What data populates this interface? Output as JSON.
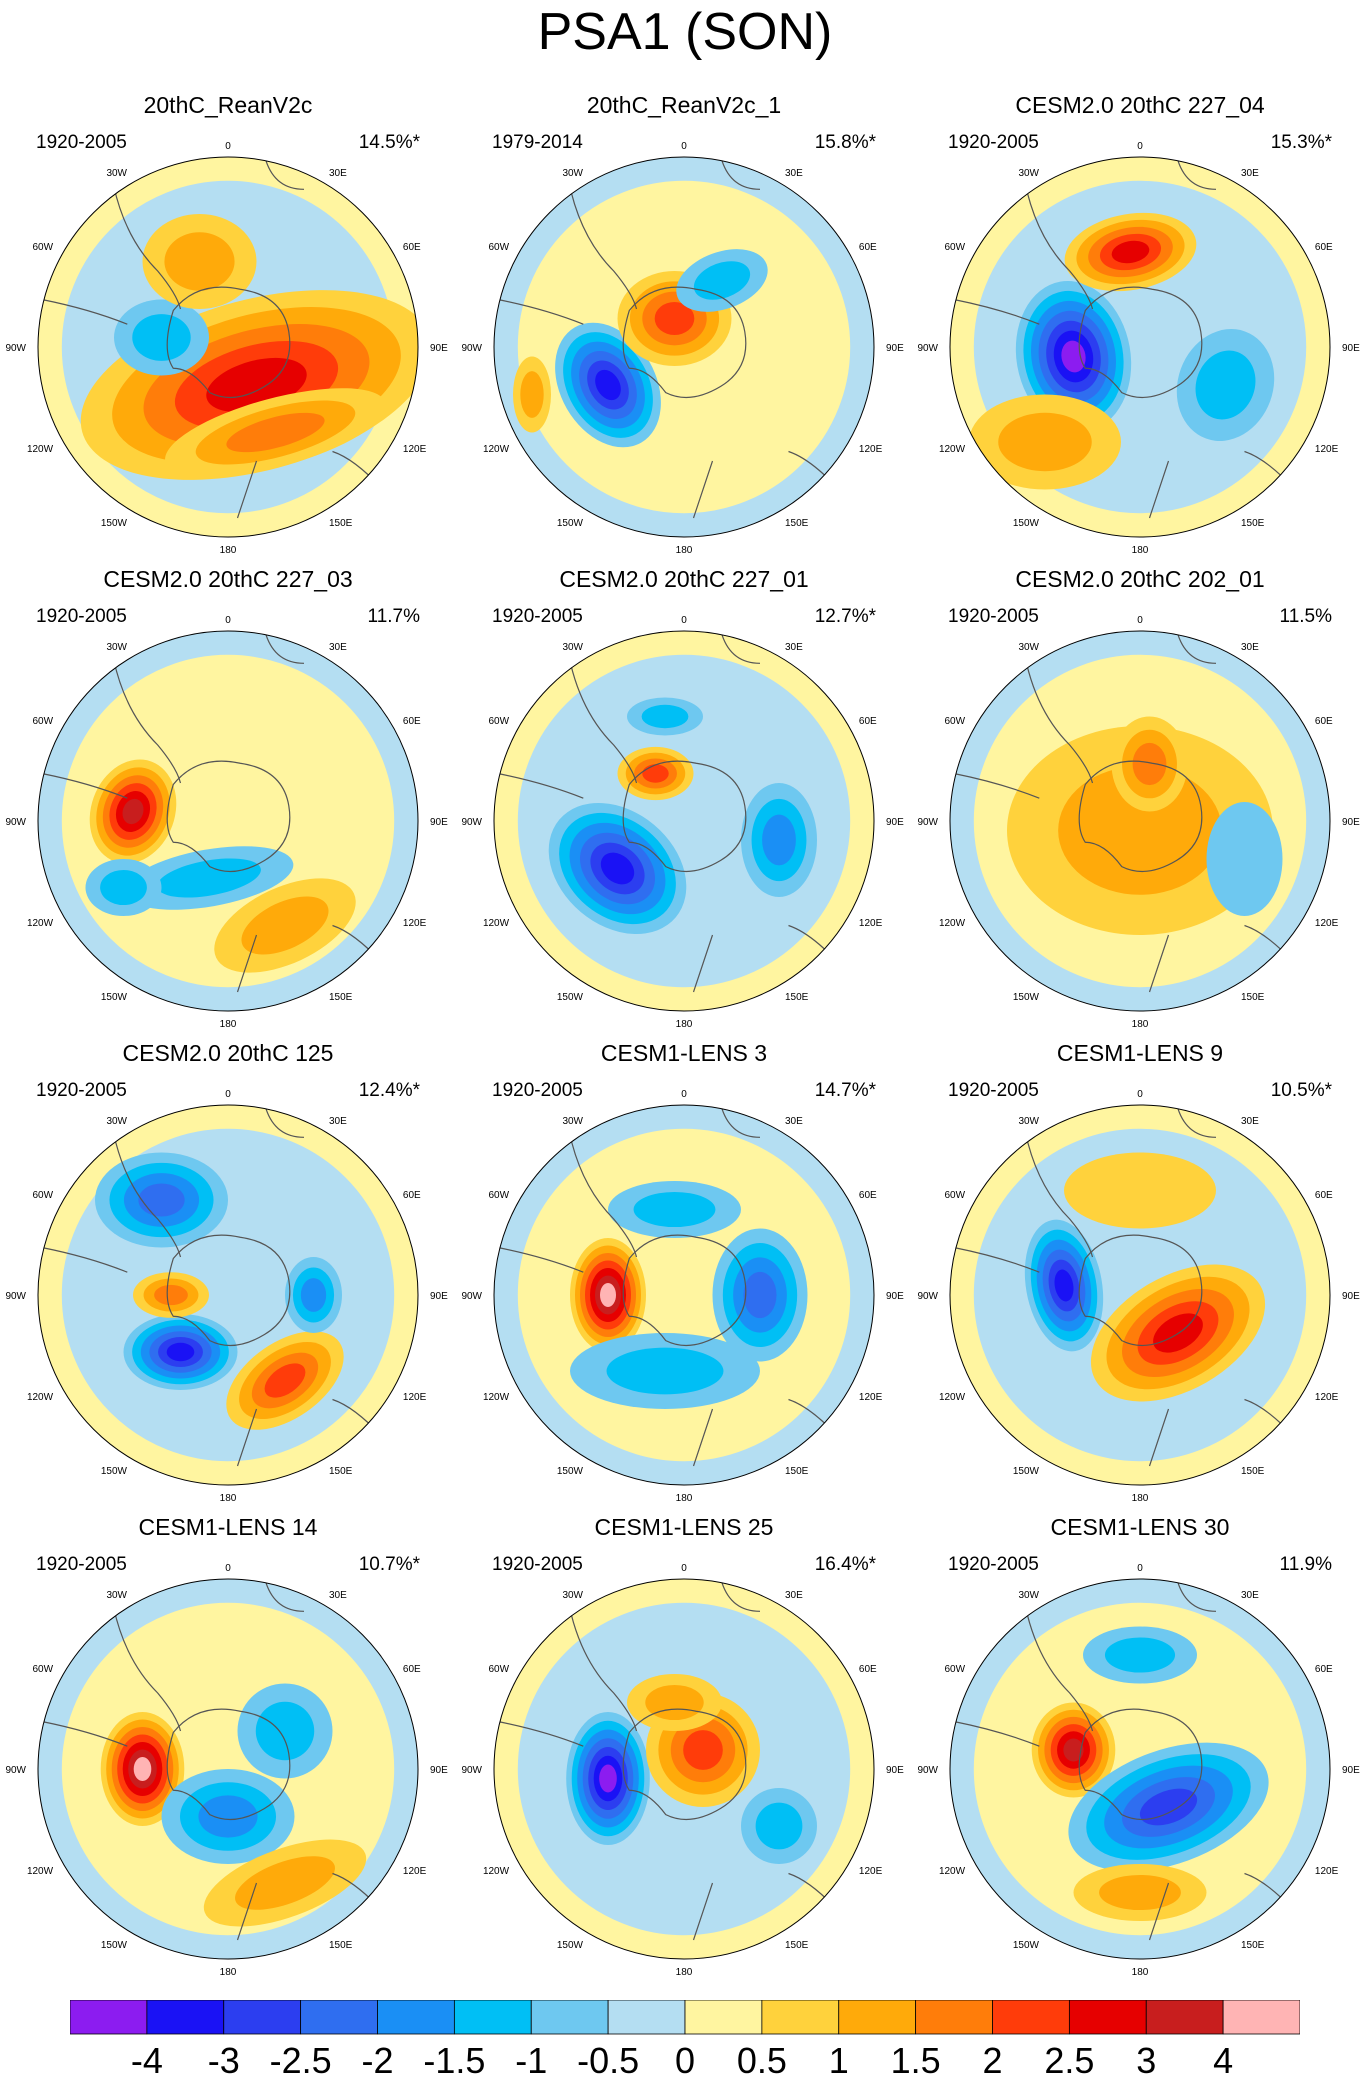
{
  "title": "PSA1 (SON)",
  "lon_labels": [
    "0",
    "30E",
    "60E",
    "90E",
    "120E",
    "150E",
    "180",
    "150W",
    "120W",
    "90W",
    "60W",
    "30W"
  ],
  "panels": [
    {
      "title": "20thC_ReanV2c",
      "period": "1920-2005",
      "variance": "14.5%*",
      "significant": true
    },
    {
      "title": "20thC_ReanV2c_1",
      "period": "1979-2014",
      "variance": "15.8%*",
      "significant": true
    },
    {
      "title": "CESM2.0 20thC 227_04",
      "period": "1920-2005",
      "variance": "15.3%*",
      "significant": true
    },
    {
      "title": "CESM2.0 20thC 227_03",
      "period": "1920-2005",
      "variance": "11.7%",
      "significant": false
    },
    {
      "title": "CESM2.0 20thC 227_01",
      "period": "1920-2005",
      "variance": "12.7%*",
      "significant": true
    },
    {
      "title": "CESM2.0 20thC 202_01",
      "period": "1920-2005",
      "variance": "11.5%",
      "significant": false
    },
    {
      "title": "CESM2.0 20thC 125",
      "period": "1920-2005",
      "variance": "12.4%*",
      "significant": true
    },
    {
      "title": "CESM1-LENS 3",
      "period": "1920-2005",
      "variance": "14.7%*",
      "significant": true
    },
    {
      "title": "CESM1-LENS 9",
      "period": "1920-2005",
      "variance": "10.5%*",
      "significant": true
    },
    {
      "title": "CESM1-LENS 14",
      "period": "1920-2005",
      "variance": "10.7%*",
      "significant": true
    },
    {
      "title": "CESM1-LENS 25",
      "period": "1920-2005",
      "variance": "16.4%*",
      "significant": true
    },
    {
      "title": "CESM1-LENS 30",
      "period": "1920-2005",
      "variance": "11.9%",
      "significant": false
    }
  ],
  "colorbar": {
    "labels": [
      "-4",
      "-3",
      "-2.5",
      "-2",
      "-1.5",
      "-1",
      "-0.5",
      "0",
      "0.5",
      "1",
      "1.5",
      "2",
      "2.5",
      "3",
      "4"
    ],
    "colors": [
      "#8c1cf0",
      "#1a12f5",
      "#2c3ef0",
      "#2f6ef0",
      "#1a8ff5",
      "#00bff5",
      "#6ec8f0",
      "#b4def2",
      "#fff5a0",
      "#ffd23c",
      "#ffaa0a",
      "#ff7d0a",
      "#ff3c0a",
      "#e60000",
      "#c81e1e",
      "#ffb4b4"
    ]
  },
  "chart_data": {
    "type": "contour-map-grid",
    "projection": "south polar stereographic",
    "title": "PSA1 (SON)",
    "levels": [
      -4,
      -3,
      -2.5,
      -2,
      -1.5,
      -1,
      -0.5,
      0,
      0.5,
      1,
      1.5,
      2,
      2.5,
      3,
      4
    ]
  }
}
